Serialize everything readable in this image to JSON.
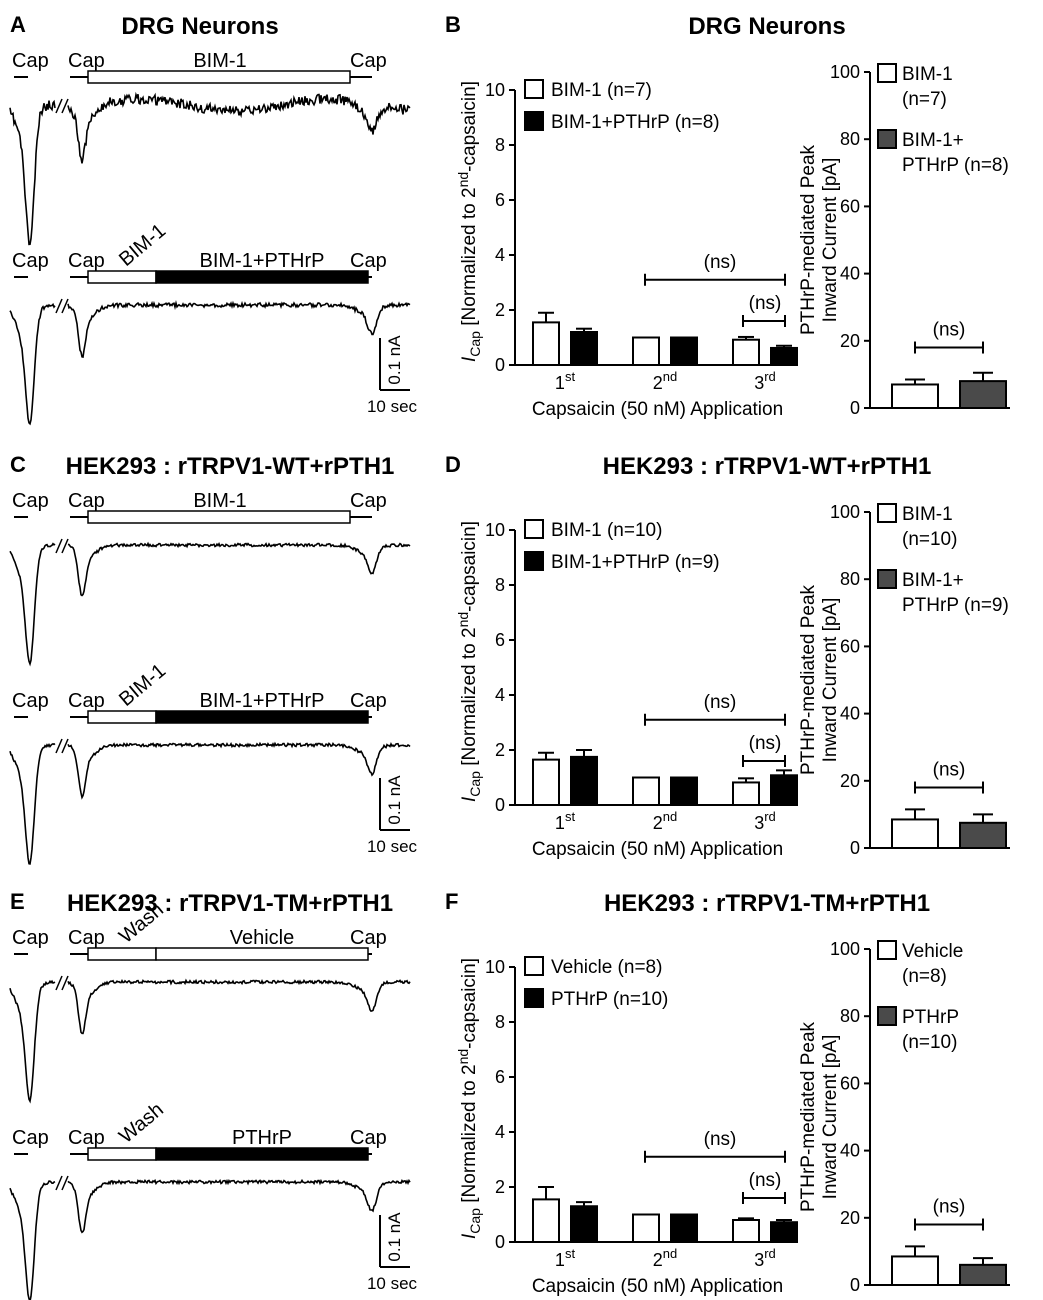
{
  "colors": {
    "open": "#ffffff",
    "filled": "#000000",
    "filled_dark": "#4a4a4a",
    "line": "#000000"
  },
  "rows": [
    {
      "trace_panel": {
        "label": "A",
        "title": "DRG Neurons",
        "traces": [
          {
            "cap1": "Cap",
            "cap2": "Cap",
            "cap3": "Cap",
            "bars": [
              {
                "text": "BIM-1",
                "fill": "open"
              }
            ]
          },
          {
            "cap1": "Cap",
            "cap2": "Cap",
            "cap3": "Cap",
            "bars": [
              {
                "text": "BIM-1",
                "fill": "open",
                "rotated": true
              },
              {
                "text": "BIM-1+PTHrP",
                "fill": "filled"
              }
            ]
          }
        ],
        "scale": {
          "current": "0.1 nA",
          "time": "10 sec"
        }
      },
      "bar_chart": {
        "label": "B",
        "title": "DRG Neurons",
        "chart_data": {
          "type": "bar",
          "ylabel_main": "I",
          "ylabel_sub": "Cap",
          "ylabel_rest": " [Normalized to 2",
          "ylabel_sup": "nd",
          "ylabel_end": "-capsaicin]",
          "xlabel": "Capsaicin (50 nM) Application",
          "categories": [
            {
              "base": "1",
              "sup": "st"
            },
            {
              "base": "2",
              "sup": "nd"
            },
            {
              "base": "3",
              "sup": "rd"
            }
          ],
          "ylim": [
            0,
            10
          ],
          "yticks": [
            "0",
            "2",
            "4",
            "6",
            "8",
            "10"
          ],
          "series": [
            {
              "name": "BIM-1 (n=7)",
              "fill": "open",
              "values": [
                1.55,
                1.0,
                0.92
              ],
              "errors": [
                0.35,
                0.0,
                0.1
              ]
            },
            {
              "name": "BIM-1+PTHrP (n=8)",
              "fill": "filled",
              "values": [
                1.2,
                1.0,
                0.62
              ],
              "errors": [
                0.12,
                0.0,
                0.08
              ]
            }
          ],
          "ns_labels": [
            "(ns)",
            "(ns)"
          ]
        }
      },
      "peak_chart": {
        "chart_data": {
          "type": "bar",
          "ylabel_line1": "PTHrP-mediated Peak",
          "ylabel_line2": "Inward Current [pA]",
          "ylim": [
            0,
            100
          ],
          "yticks": [
            "0",
            "20",
            "40",
            "60",
            "80",
            "100"
          ],
          "series": [
            {
              "name_lines": [
                "BIM-1",
                "(n=7)"
              ],
              "fill": "open",
              "value": 7,
              "error": 1.5
            },
            {
              "name_lines": [
                "BIM-1+",
                "PTHrP (n=8)"
              ],
              "fill": "filled_dark",
              "value": 8,
              "error": 2.5
            }
          ],
          "ns_label": "(ns)"
        }
      }
    },
    {
      "trace_panel": {
        "label": "C",
        "title": "HEK293 : rTRPV1-WT+rPTH1",
        "traces": [
          {
            "cap1": "Cap",
            "cap2": "Cap",
            "cap3": "Cap",
            "bars": [
              {
                "text": "BIM-1",
                "fill": "open"
              }
            ]
          },
          {
            "cap1": "Cap",
            "cap2": "Cap",
            "cap3": "Cap",
            "bars": [
              {
                "text": "BIM-1",
                "fill": "open",
                "rotated": true
              },
              {
                "text": "BIM-1+PTHrP",
                "fill": "filled"
              }
            ]
          }
        ],
        "scale": {
          "current": "0.1 nA",
          "time": "10 sec"
        }
      },
      "bar_chart": {
        "label": "D",
        "title": "HEK293 : rTRPV1-WT+rPTH1",
        "chart_data": {
          "type": "bar",
          "ylabel_main": "I",
          "ylabel_sub": "Cap",
          "ylabel_rest": " [Normalized to 2",
          "ylabel_sup": "nd",
          "ylabel_end": "-capsaicin]",
          "xlabel": "Capsaicin (50 nM) Application",
          "categories": [
            {
              "base": "1",
              "sup": "st"
            },
            {
              "base": "2",
              "sup": "nd"
            },
            {
              "base": "3",
              "sup": "rd"
            }
          ],
          "ylim": [
            0,
            10
          ],
          "yticks": [
            "0",
            "2",
            "4",
            "6",
            "8",
            "10"
          ],
          "series": [
            {
              "name": "BIM-1 (n=10)",
              "fill": "open",
              "values": [
                1.65,
                1.0,
                0.82
              ],
              "errors": [
                0.25,
                0.0,
                0.15
              ]
            },
            {
              "name": "BIM-1+PTHrP (n=9)",
              "fill": "filled",
              "values": [
                1.75,
                1.0,
                1.08
              ],
              "errors": [
                0.25,
                0.0,
                0.18
              ]
            }
          ],
          "ns_labels": [
            "(ns)",
            "(ns)"
          ]
        }
      },
      "peak_chart": {
        "chart_data": {
          "type": "bar",
          "ylabel_line1": "PTHrP-mediated Peak",
          "ylabel_line2": "Inward Current [pA]",
          "ylim": [
            0,
            100
          ],
          "yticks": [
            "0",
            "20",
            "40",
            "60",
            "80",
            "100"
          ],
          "series": [
            {
              "name_lines": [
                "BIM-1",
                "(n=10)"
              ],
              "fill": "open",
              "value": 8.5,
              "error": 3
            },
            {
              "name_lines": [
                "BIM-1+",
                "PTHrP (n=9)"
              ],
              "fill": "filled_dark",
              "value": 7.5,
              "error": 2.5
            }
          ],
          "ns_label": "(ns)"
        }
      }
    },
    {
      "trace_panel": {
        "label": "E",
        "title": "HEK293 : rTRPV1-TM+rPTH1",
        "traces": [
          {
            "cap1": "Cap",
            "cap2": "Cap",
            "cap3": "Cap",
            "bars": [
              {
                "text": "Wash",
                "fill": "open",
                "rotated": true
              },
              {
                "text": "Vehicle",
                "fill": "open"
              }
            ]
          },
          {
            "cap1": "Cap",
            "cap2": "Cap",
            "cap3": "Cap",
            "bars": [
              {
                "text": "Wash",
                "fill": "open",
                "rotated": true
              },
              {
                "text": "PTHrP",
                "fill": "filled"
              }
            ]
          }
        ],
        "scale": {
          "current": "0.1 nA",
          "time": "10 sec"
        }
      },
      "bar_chart": {
        "label": "F",
        "title": "HEK293 : rTRPV1-TM+rPTH1",
        "chart_data": {
          "type": "bar",
          "ylabel_main": "I",
          "ylabel_sub": "Cap",
          "ylabel_rest": " [Normalized to 2",
          "ylabel_sup": "nd",
          "ylabel_end": "-capsaicin]",
          "xlabel": "Capsaicin (50 nM) Application",
          "categories": [
            {
              "base": "1",
              "sup": "st"
            },
            {
              "base": "2",
              "sup": "nd"
            },
            {
              "base": "3",
              "sup": "rd"
            }
          ],
          "ylim": [
            0,
            10
          ],
          "yticks": [
            "0",
            "2",
            "4",
            "6",
            "8",
            "10"
          ],
          "series": [
            {
              "name": "Vehicle (n=8)",
              "fill": "open",
              "values": [
                1.55,
                1.0,
                0.8
              ],
              "errors": [
                0.45,
                0.0,
                0.06
              ]
            },
            {
              "name": "PTHrP (n=10)",
              "fill": "filled",
              "values": [
                1.3,
                1.0,
                0.72
              ],
              "errors": [
                0.15,
                0.0,
                0.08
              ]
            }
          ],
          "ns_labels": [
            "(ns)",
            "(ns)"
          ]
        }
      },
      "peak_chart": {
        "chart_data": {
          "type": "bar",
          "ylabel_line1": "PTHrP-mediated Peak",
          "ylabel_line2": "Inward Current [pA]",
          "ylim": [
            0,
            100
          ],
          "yticks": [
            "0",
            "20",
            "40",
            "60",
            "80",
            "100"
          ],
          "series": [
            {
              "name_lines": [
                "Vehicle",
                "(n=8)"
              ],
              "fill": "open",
              "value": 8.5,
              "error": 3
            },
            {
              "name_lines": [
                "PTHrP",
                "(n=10)"
              ],
              "fill": "filled_dark",
              "value": 6,
              "error": 2
            }
          ],
          "ns_label": "(ns)"
        }
      }
    }
  ]
}
